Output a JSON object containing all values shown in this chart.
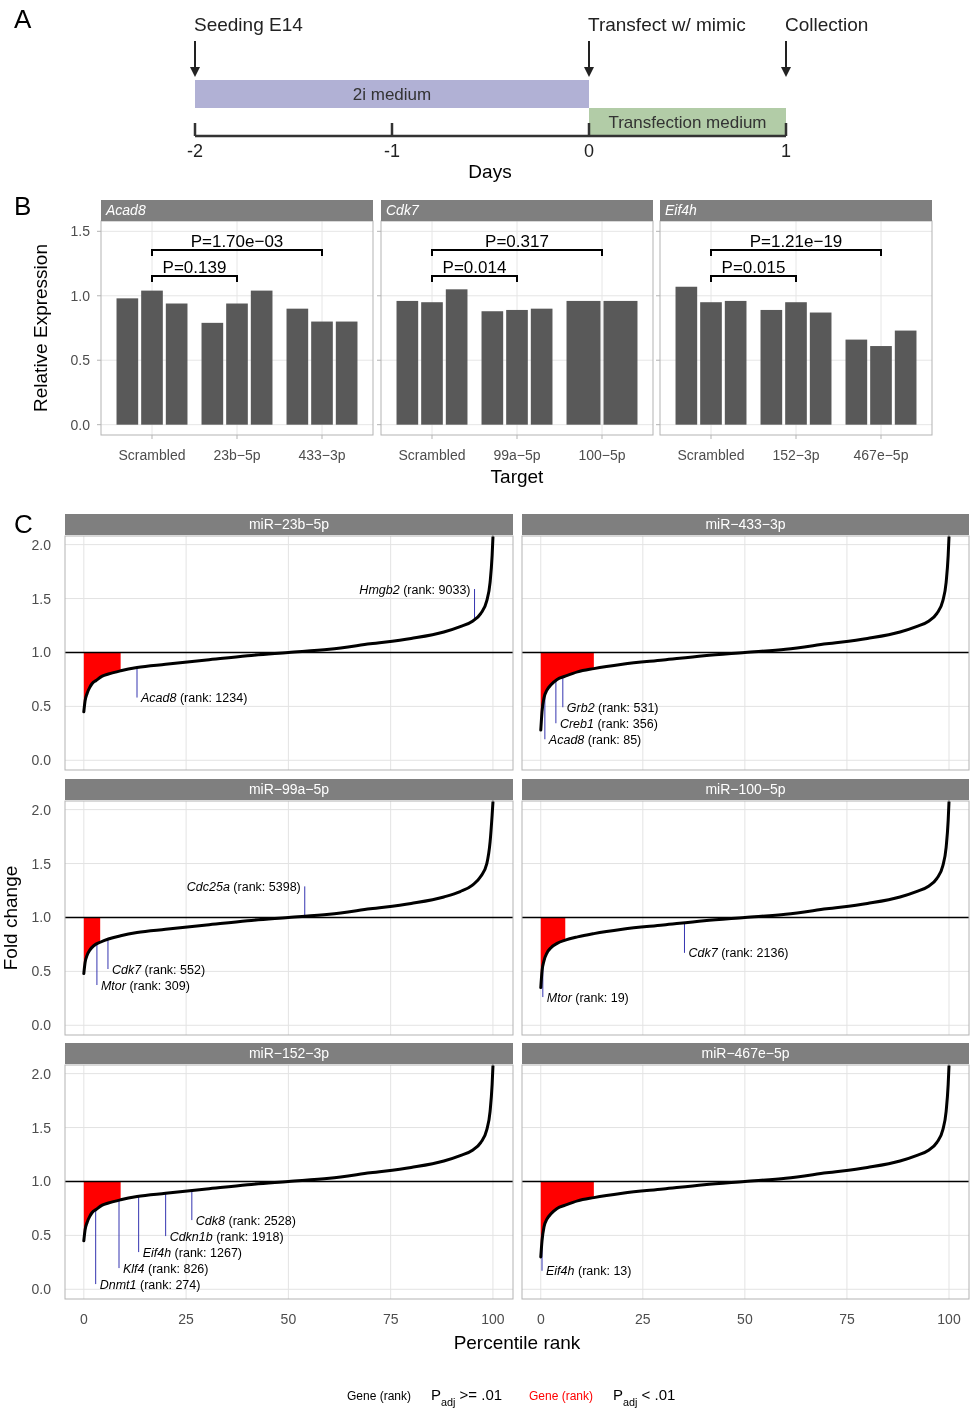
{
  "chart_data": [
    {
      "type": "bar",
      "orientation": "horizontal",
      "title": "A",
      "categories": [
        "2i medium",
        "Transfection medium"
      ],
      "values": [
        2,
        1
      ],
      "base": [
        -2,
        0
      ],
      "colors": [
        "#b1b1d5",
        "#b2cca7"
      ],
      "xlim": [
        -2,
        1
      ],
      "xticks": [
        -2,
        -1,
        0,
        1
      ],
      "xlabel": "Days",
      "annotations": [
        "Seeding E14",
        "Transfect w/ mimic",
        "Collection"
      ]
    },
    {
      "type": "bar",
      "title": "B",
      "subtitle": "Acad8",
      "categories": [
        "Scrambled",
        "23b−5p",
        "433−3p"
      ],
      "series": [
        {
          "color": "#595959",
          "values": [
            0.98,
            0.79,
            0.9
          ]
        },
        {
          "color": "#595959",
          "values": [
            1.04,
            0.94,
            0.8
          ]
        },
        {
          "color": "#595959",
          "values": [
            0.94,
            1.04,
            0.8
          ]
        }
      ],
      "ylim": [
        -0.08,
        1.58
      ],
      "yticks": [
        {
          "value": 0,
          "label": "0.0"
        },
        {
          "value": 0.5,
          "label": "0.5"
        },
        {
          "value": 1,
          "label": "1.0"
        },
        {
          "value": 1.5,
          "label": "1.5"
        }
      ],
      "ylabel": "Relative Expression",
      "grid": true,
      "annotations": [
        "P=1.70e−03",
        "P=0.139"
      ]
    },
    {
      "type": "bar",
      "subtitle": "Cdk7",
      "categories": [
        "Scrambled",
        "99a−5p",
        "100−5p"
      ],
      "series": [
        {
          "color": "#595959",
          "values": [
            0.96,
            0.88,
            0.96
          ]
        },
        {
          "color": "#595959",
          "values": [
            0.95,
            0.89,
            0.96
          ]
        },
        {
          "color": "#595959",
          "values": [
            1.05,
            0.9,
            null
          ]
        }
      ],
      "ylim": [
        -0.08,
        1.58
      ],
      "yticks": [
        0,
        0.5,
        1,
        1.5
      ],
      "xlabel": "Target",
      "grid": true,
      "tick_labels": "x",
      "annotations": [
        "P=0.317",
        "P=0.014"
      ]
    },
    {
      "type": "bar",
      "subtitle": "Eif4h",
      "categories": [
        "Scrambled",
        "152−3p",
        "467e−5p"
      ],
      "series": [
        {
          "color": "#595959",
          "values": [
            1.07,
            0.89,
            0.66
          ]
        },
        {
          "color": "#595959",
          "values": [
            0.95,
            0.95,
            0.61
          ]
        },
        {
          "color": "#595959",
          "values": [
            0.96,
            0.87,
            0.73
          ]
        }
      ],
      "ylim": [
        -0.08,
        1.58
      ],
      "yticks": [
        0,
        0.5,
        1,
        1.5
      ],
      "grid": true,
      "tick_labels": "x",
      "annotations": [
        "P=1.21e−19",
        "P=0.015"
      ]
    },
    {
      "type": "line",
      "title": "C",
      "subtitle": "miR−23b−5p",
      "xlim": [
        -4.6,
        104.9
      ],
      "xticks": [
        0,
        25,
        50,
        75,
        100
      ],
      "ylim": [
        -0.09,
        2.08
      ],
      "yticks": [
        {
          "value": 0,
          "label": "0.0"
        },
        {
          "value": 0.5,
          "label": "0.5"
        },
        {
          "value": 1,
          "label": "1.0"
        },
        {
          "value": 1.5,
          "label": "1.5"
        },
        {
          "value": 2,
          "label": "2.0"
        }
      ],
      "grid": true,
      "tick_labels": "y",
      "ref_lines": [
        {
          "axis": "y",
          "value": 1,
          "color": "#000000"
        }
      ],
      "series": [
        {
          "color": "#000000",
          "x": [
            0,
            0.3,
            0.8,
            1.5,
            2,
            3,
            4.5,
            6,
            9,
            13,
            20,
            30,
            40,
            50,
            60,
            70,
            80,
            88,
            92,
            95,
            97,
            98.5,
            99.3,
            99.8,
            100
          ],
          "values": [
            0.45,
            0.55,
            0.62,
            0.68,
            0.71,
            0.74,
            0.78,
            0.8,
            0.83,
            0.86,
            0.89,
            0.93,
            0.97,
            1.0,
            1.03,
            1.08,
            1.13,
            1.19,
            1.24,
            1.29,
            1.36,
            1.48,
            1.65,
            1.9,
            2.07
          ],
          "lower": [
            0.45,
            0.55,
            0.62,
            0.68,
            0.71,
            0.74,
            0.78,
            0.8,
            0.83,
            null,
            null,
            null,
            null,
            null,
            null,
            null,
            null,
            null,
            null,
            null,
            null,
            null,
            null,
            null,
            null
          ],
          "upper": [
            1,
            1,
            1,
            1,
            1,
            1,
            1,
            1,
            1,
            null,
            null,
            null,
            null,
            null,
            null,
            null,
            null,
            null,
            null,
            null,
            null,
            null,
            null,
            null,
            null
          ]
        }
      ],
      "annotations": [
        {
          "text": "Hmgb2 (rank: 9033)",
          "x": 95.5,
          "y": 1.31
        },
        {
          "text": "Acad8 (rank: 1234)",
          "x": 13,
          "y": 0.86
        }
      ]
    },
    {
      "type": "line",
      "subtitle": "miR−433−3p",
      "xlim": [
        -4.6,
        104.9
      ],
      "xticks": [
        0,
        25,
        50,
        75,
        100
      ],
      "ylim": [
        -0.09,
        2.08
      ],
      "yticks": [
        0,
        0.5,
        1,
        1.5,
        2
      ],
      "grid": true,
      "tick_labels": false,
      "ref_lines": [
        {
          "axis": "y",
          "value": 1,
          "color": "#000000"
        }
      ],
      "series": [
        {
          "color": "#000000",
          "x": [
            0,
            0.3,
            0.8,
            1.5,
            2.5,
            4,
            6,
            9,
            13,
            20,
            30,
            40,
            50,
            60,
            70,
            80,
            88,
            92,
            95,
            97,
            98.5,
            99.3,
            99.8,
            100
          ],
          "values": [
            0.28,
            0.45,
            0.58,
            0.65,
            0.7,
            0.75,
            0.78,
            0.82,
            0.85,
            0.89,
            0.93,
            0.97,
            1.0,
            1.03,
            1.08,
            1.13,
            1.19,
            1.24,
            1.29,
            1.36,
            1.48,
            1.65,
            1.9,
            2.07
          ],
          "lower": [
            0.28,
            0.45,
            0.58,
            0.65,
            0.7,
            0.75,
            0.78,
            0.82,
            0.85,
            null,
            null,
            null,
            null,
            null,
            null,
            null,
            null,
            null,
            null,
            null,
            null,
            null,
            null,
            null
          ],
          "upper": [
            1,
            1,
            1,
            1,
            1,
            1,
            1,
            1,
            1,
            null,
            null,
            null,
            null,
            null,
            null,
            null,
            null,
            null,
            null,
            null,
            null,
            null,
            null,
            null
          ]
        }
      ],
      "annotations": [
        {
          "text": "Grb2 (rank: 531)",
          "x": 5.4,
          "y": 0.77
        },
        {
          "text": "Creb1 (rank: 356)",
          "x": 3.7,
          "y": 0.74
        },
        {
          "text": "Acad8 (rank: 85)",
          "x": 1.0,
          "y": 0.6
        }
      ]
    },
    {
      "type": "line",
      "subtitle": "miR−99a−5p",
      "xlim": [
        -4.6,
        104.9
      ],
      "xticks": [
        0,
        25,
        50,
        75,
        100
      ],
      "ylim": [
        -0.09,
        2.08
      ],
      "yticks": [
        {
          "value": 0,
          "label": "0.0"
        },
        {
          "value": 0.5,
          "label": "0.5"
        },
        {
          "value": 1,
          "label": "1.0"
        },
        {
          "value": 1.5,
          "label": "1.5"
        },
        {
          "value": 2,
          "label": "2.0"
        }
      ],
      "ylabel": "Fold change",
      "grid": true,
      "tick_labels": "y",
      "ref_lines": [
        {
          "axis": "y",
          "value": 1,
          "color": "#000000"
        }
      ],
      "series": [
        {
          "color": "#000000",
          "x": [
            0,
            0.3,
            0.8,
            1.5,
            2.5,
            4,
            6,
            9,
            13,
            20,
            30,
            40,
            50,
            60,
            70,
            80,
            88,
            92,
            95,
            97,
            98.5,
            99.3,
            99.8,
            100
          ],
          "values": [
            0.48,
            0.58,
            0.65,
            0.7,
            0.74,
            0.77,
            0.8,
            0.83,
            0.86,
            0.89,
            0.93,
            0.97,
            1.0,
            1.03,
            1.08,
            1.13,
            1.19,
            1.24,
            1.3,
            1.38,
            1.5,
            1.7,
            1.95,
            2.07
          ],
          "lower": [
            0.48,
            0.58,
            0.65,
            0.7,
            0.74,
            0.77,
            null,
            null,
            null,
            null,
            null,
            null,
            null,
            null,
            null,
            null,
            null,
            null,
            null,
            null,
            null,
            null,
            null,
            null
          ],
          "upper": [
            1,
            1,
            1,
            1,
            1,
            1,
            null,
            null,
            null,
            null,
            null,
            null,
            null,
            null,
            null,
            null,
            null,
            null,
            null,
            null,
            null,
            null,
            null,
            null
          ]
        }
      ],
      "annotations": [
        {
          "text": "Cdc25a (rank: 5398)",
          "x": 54,
          "y": 1.01
        },
        {
          "text": "Cdk7 (rank: 552)",
          "x": 5.9,
          "y": 0.8
        },
        {
          "text": "Mtor (rank: 309)",
          "x": 3.2,
          "y": 0.75
        }
      ]
    },
    {
      "type": "line",
      "subtitle": "miR−100−5p",
      "xlim": [
        -4.6,
        104.9
      ],
      "xticks": [
        0,
        25,
        50,
        75,
        100
      ],
      "ylim": [
        -0.09,
        2.08
      ],
      "yticks": [
        0,
        0.5,
        1,
        1.5,
        2
      ],
      "grid": true,
      "tick_labels": false,
      "ref_lines": [
        {
          "axis": "y",
          "value": 1,
          "color": "#000000"
        }
      ],
      "series": [
        {
          "color": "#000000",
          "x": [
            0,
            0.3,
            0.8,
            1.5,
            2.5,
            4,
            6,
            9,
            13,
            20,
            30,
            40,
            50,
            60,
            70,
            80,
            88,
            92,
            95,
            97,
            98.5,
            99.3,
            99.8,
            100
          ],
          "values": [
            0.35,
            0.5,
            0.6,
            0.67,
            0.72,
            0.76,
            0.79,
            0.82,
            0.85,
            0.89,
            0.93,
            0.97,
            1.0,
            1.03,
            1.08,
            1.13,
            1.19,
            1.24,
            1.29,
            1.36,
            1.48,
            1.65,
            1.9,
            2.07
          ],
          "lower": [
            0.35,
            0.5,
            0.6,
            0.67,
            0.72,
            0.76,
            0.79,
            null,
            null,
            null,
            null,
            null,
            null,
            null,
            null,
            null,
            null,
            null,
            null,
            null,
            null,
            null,
            null,
            null
          ],
          "upper": [
            1,
            1,
            1,
            1,
            1,
            1,
            1,
            null,
            null,
            null,
            null,
            null,
            null,
            null,
            null,
            null,
            null,
            null,
            null,
            null,
            null,
            null,
            null,
            null
          ]
        }
      ],
      "annotations": [
        {
          "text": "Cdk7 (rank: 2136)",
          "x": 35.2,
          "y": 0.95
        },
        {
          "text": "Mtor (rank: 19)",
          "x": 0.5,
          "y": 0.54
        }
      ]
    },
    {
      "type": "line",
      "subtitle": "miR−152−3p",
      "xlim": [
        -4.6,
        104.9
      ],
      "xticks": [
        0,
        25,
        50,
        75,
        100
      ],
      "ylim": [
        -0.09,
        2.08
      ],
      "yticks": [
        {
          "value": 0,
          "label": "0.0"
        },
        {
          "value": 0.5,
          "label": "0.5"
        },
        {
          "value": 1,
          "label": "1.0"
        },
        {
          "value": 1.5,
          "label": "1.5"
        },
        {
          "value": 2,
          "label": "2.0"
        }
      ],
      "xlabel": "Percentile rank",
      "grid": true,
      "ref_lines": [
        {
          "axis": "y",
          "value": 1,
          "color": "#000000"
        }
      ],
      "series": [
        {
          "color": "#000000",
          "x": [
            0,
            0.3,
            0.8,
            1.5,
            2,
            3,
            4.5,
            6,
            9,
            13,
            20,
            30,
            40,
            50,
            60,
            70,
            80,
            88,
            92,
            95,
            97,
            98.5,
            99.3,
            99.8,
            100
          ],
          "values": [
            0.45,
            0.55,
            0.62,
            0.68,
            0.71,
            0.74,
            0.78,
            0.8,
            0.83,
            0.86,
            0.89,
            0.93,
            0.97,
            1.0,
            1.03,
            1.08,
            1.13,
            1.19,
            1.24,
            1.29,
            1.36,
            1.48,
            1.65,
            1.9,
            2.07
          ],
          "lower": [
            0.45,
            0.55,
            0.62,
            0.68,
            0.71,
            0.74,
            0.78,
            0.8,
            0.83,
            null,
            null,
            null,
            null,
            null,
            null,
            null,
            null,
            null,
            null,
            null,
            null,
            null,
            null,
            null,
            null
          ],
          "upper": [
            1,
            1,
            1,
            1,
            1,
            1,
            1,
            1,
            1,
            null,
            null,
            null,
            null,
            null,
            null,
            null,
            null,
            null,
            null,
            null,
            null,
            null,
            null,
            null,
            null
          ]
        }
      ],
      "annotations": [
        {
          "text": "Cdk8 (rank: 2528)",
          "x": 26.4,
          "y": 0.92
        },
        {
          "text": "Cdkn1b (rank: 1918)",
          "x": 20,
          "y": 0.89
        },
        {
          "text": "Eif4h (rank: 1267)",
          "x": 13.4,
          "y": 0.86
        },
        {
          "text": "Klf4 (rank: 826)",
          "x": 8.6,
          "y": 0.83
        },
        {
          "text": "Dnmt1 (rank: 274)",
          "x": 2.9,
          "y": 0.74
        }
      ]
    },
    {
      "type": "line",
      "subtitle": "miR−467e−5p",
      "xlim": [
        -4.6,
        104.9
      ],
      "xticks": [
        0,
        25,
        50,
        75,
        100
      ],
      "ylim": [
        -0.09,
        2.08
      ],
      "yticks": [
        0,
        0.5,
        1,
        1.5,
        2
      ],
      "grid": true,
      "tick_labels": "x",
      "ref_lines": [
        {
          "axis": "y",
          "value": 1,
          "color": "#000000"
        }
      ],
      "series": [
        {
          "color": "#000000",
          "x": [
            0,
            0.3,
            0.8,
            1.5,
            2.5,
            4,
            6,
            9,
            13,
            20,
            30,
            40,
            50,
            60,
            70,
            80,
            88,
            92,
            95,
            97,
            98.5,
            99.3,
            99.8,
            100
          ],
          "values": [
            0.3,
            0.45,
            0.58,
            0.65,
            0.7,
            0.75,
            0.78,
            0.82,
            0.85,
            0.89,
            0.93,
            0.97,
            1.0,
            1.03,
            1.08,
            1.13,
            1.19,
            1.24,
            1.29,
            1.36,
            1.48,
            1.65,
            1.9,
            2.07
          ],
          "lower": [
            0.3,
            0.45,
            0.58,
            0.65,
            0.7,
            0.75,
            0.78,
            0.82,
            0.85,
            null,
            null,
            null,
            null,
            null,
            null,
            null,
            null,
            null,
            null,
            null,
            null,
            null,
            null,
            null
          ],
          "upper": [
            1,
            1,
            1,
            1,
            1,
            1,
            1,
            1,
            1,
            null,
            null,
            null,
            null,
            null,
            null,
            null,
            null,
            null,
            null,
            null,
            null,
            null,
            null,
            null
          ]
        }
      ],
      "annotations": [
        {
          "text": "Eif4h (rank: 13)",
          "x": 0.3,
          "y": 0.45
        },
        "Gene (rank)",
        "P$_{adj}$ >= .01",
        "Gene (rank)",
        "P$_{adj}$ < .01"
      ]
    }
  ]
}
